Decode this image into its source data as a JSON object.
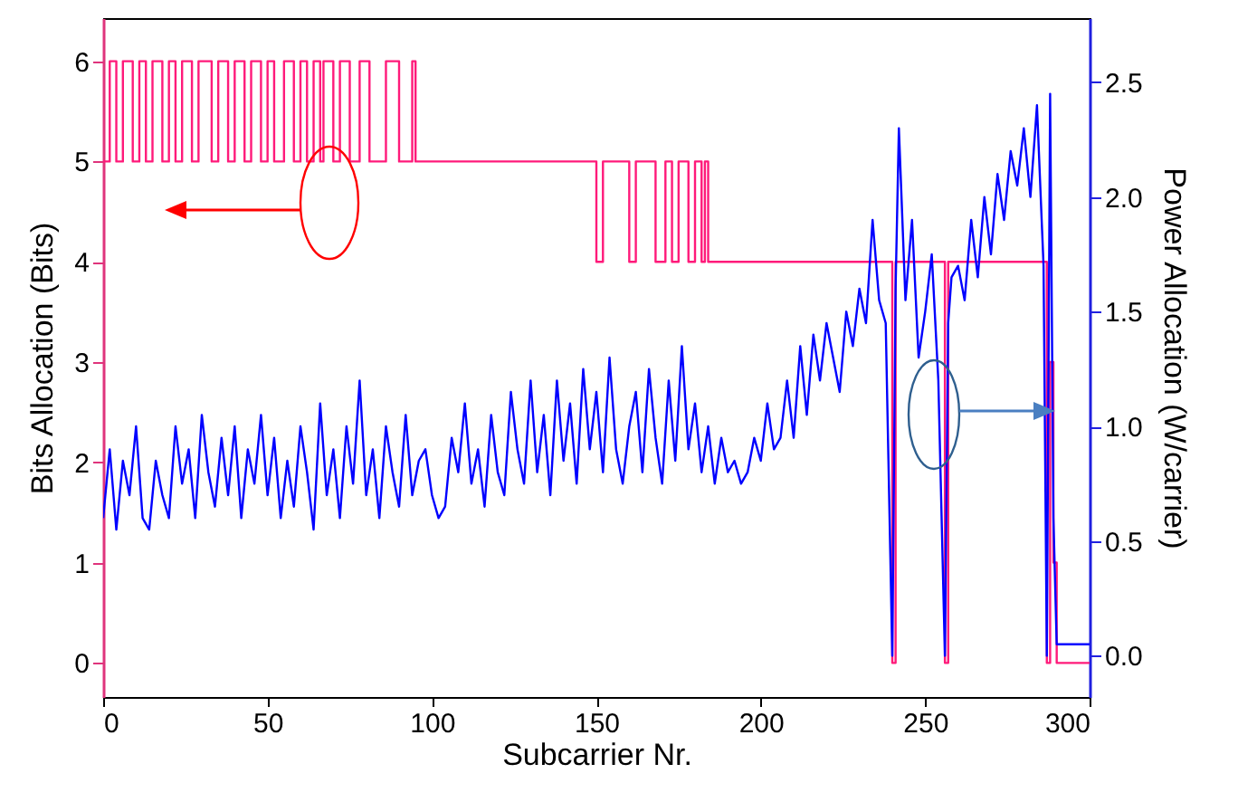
{
  "chart_data": {
    "type": "line",
    "xlabel": "Subcarrier Nr.",
    "ylabel": "Bits Allocation (Bits)",
    "y2label": "Power Allocation (W/carrier)",
    "xlim": [
      0,
      300
    ],
    "xticks": [
      0,
      50,
      100,
      150,
      200,
      250,
      300
    ],
    "ylim": [
      -0.34,
      6.43
    ],
    "yticks": [
      0,
      1,
      2,
      3,
      4,
      5,
      6
    ],
    "y2lim": [
      -0.18,
      2.78
    ],
    "y2ticks": [
      {
        "value": 0,
        "label": "0.0"
      },
      {
        "value": 0.5,
        "label": "0.5"
      },
      {
        "value": 1,
        "label": "1.0"
      },
      {
        "value": 1.5,
        "label": "1.5"
      },
      {
        "value": 2,
        "label": "2.0"
      },
      {
        "value": 2.5,
        "label": "2.5"
      }
    ],
    "grid": false,
    "series": [
      {
        "type": "step",
        "color": "#ff1a7a",
        "x": [
          0,
          2,
          4,
          6,
          9,
          11,
          13,
          15,
          18,
          20,
          22,
          24,
          27,
          29,
          33,
          35,
          38,
          40,
          43,
          45,
          48,
          50,
          52,
          55,
          58,
          60,
          62,
          64,
          66,
          67,
          70,
          72,
          75,
          78,
          81,
          86,
          90,
          94,
          95,
          150,
          152,
          160,
          162,
          168,
          171,
          173,
          175,
          178,
          180,
          182,
          183,
          184,
          240,
          241,
          256,
          257,
          287,
          288,
          289,
          290,
          300
        ],
        "values": [
          5,
          6,
          5,
          6,
          5,
          6,
          5,
          6,
          5,
          6,
          5,
          6,
          5,
          6,
          5,
          6,
          5,
          6,
          5,
          6,
          5,
          6,
          5,
          6,
          5,
          6,
          5,
          6,
          5,
          6,
          5,
          6,
          5,
          6,
          5,
          6,
          5,
          6,
          5,
          4,
          5,
          4,
          5,
          4,
          5,
          4,
          5,
          4,
          5,
          4,
          5,
          4,
          0,
          4,
          0,
          4,
          0,
          3,
          1,
          0,
          0
        ]
      },
      {
        "axis": "y2",
        "color": "#0000ff",
        "x": [
          0,
          2,
          4,
          6,
          8,
          10,
          12,
          14,
          16,
          18,
          20,
          22,
          24,
          26,
          28,
          30,
          32,
          34,
          36,
          38,
          40,
          42,
          44,
          46,
          48,
          50,
          52,
          54,
          56,
          58,
          60,
          62,
          64,
          66,
          68,
          70,
          72,
          74,
          76,
          78,
          80,
          82,
          84,
          86,
          88,
          90,
          92,
          94,
          96,
          98,
          100,
          102,
          104,
          106,
          108,
          110,
          112,
          114,
          116,
          118,
          120,
          122,
          124,
          126,
          128,
          130,
          132,
          134,
          136,
          138,
          140,
          142,
          144,
          146,
          148,
          150,
          152,
          154,
          156,
          158,
          160,
          162,
          164,
          166,
          168,
          170,
          172,
          174,
          176,
          178,
          180,
          182,
          184,
          186,
          188,
          190,
          192,
          194,
          196,
          198,
          200,
          202,
          204,
          206,
          208,
          210,
          212,
          214,
          216,
          218,
          220,
          222,
          224,
          226,
          228,
          230,
          232,
          234,
          236,
          238,
          240,
          241,
          242,
          244,
          246,
          248,
          250,
          252,
          254,
          256,
          257,
          258,
          260,
          262,
          264,
          266,
          268,
          270,
          272,
          274,
          276,
          278,
          280,
          282,
          284,
          286,
          287,
          288,
          289,
          290,
          300
        ],
        "values": [
          0.6,
          0.9,
          0.55,
          0.85,
          0.7,
          1.0,
          0.6,
          0.55,
          0.85,
          0.7,
          0.6,
          1.0,
          0.75,
          0.9,
          0.6,
          1.05,
          0.8,
          0.65,
          0.95,
          0.7,
          1.0,
          0.6,
          0.9,
          0.75,
          1.05,
          0.7,
          0.95,
          0.6,
          0.85,
          0.65,
          1.0,
          0.8,
          0.55,
          1.1,
          0.7,
          0.9,
          0.6,
          1.0,
          0.75,
          1.2,
          0.7,
          0.9,
          0.6,
          1.0,
          0.8,
          0.65,
          1.05,
          0.7,
          0.85,
          0.9,
          0.7,
          0.6,
          0.65,
          0.95,
          0.8,
          1.1,
          0.75,
          0.9,
          0.65,
          1.05,
          0.8,
          0.7,
          1.15,
          0.9,
          0.75,
          1.2,
          0.8,
          1.05,
          0.7,
          1.2,
          0.85,
          1.1,
          0.75,
          1.25,
          0.9,
          1.15,
          0.8,
          1.3,
          0.9,
          0.75,
          1.0,
          1.15,
          0.8,
          1.25,
          0.95,
          0.75,
          1.2,
          0.85,
          1.35,
          0.9,
          1.1,
          0.8,
          1.0,
          0.75,
          0.95,
          0.8,
          0.85,
          0.75,
          0.8,
          0.95,
          0.85,
          1.1,
          0.9,
          0.95,
          1.2,
          0.95,
          1.35,
          1.05,
          1.4,
          1.2,
          1.45,
          1.3,
          1.15,
          1.5,
          1.35,
          1.6,
          1.45,
          1.9,
          1.55,
          1.45,
          0.0,
          1.6,
          2.3,
          1.55,
          1.9,
          1.3,
          1.5,
          1.75,
          1.2,
          0.0,
          1.45,
          1.65,
          1.7,
          1.55,
          1.9,
          1.65,
          2.0,
          1.75,
          2.1,
          1.9,
          2.2,
          2.05,
          2.3,
          2.0,
          2.4,
          1.7,
          0.0,
          2.45,
          0.6,
          0.05,
          0.05
        ]
      }
    ]
  }
}
